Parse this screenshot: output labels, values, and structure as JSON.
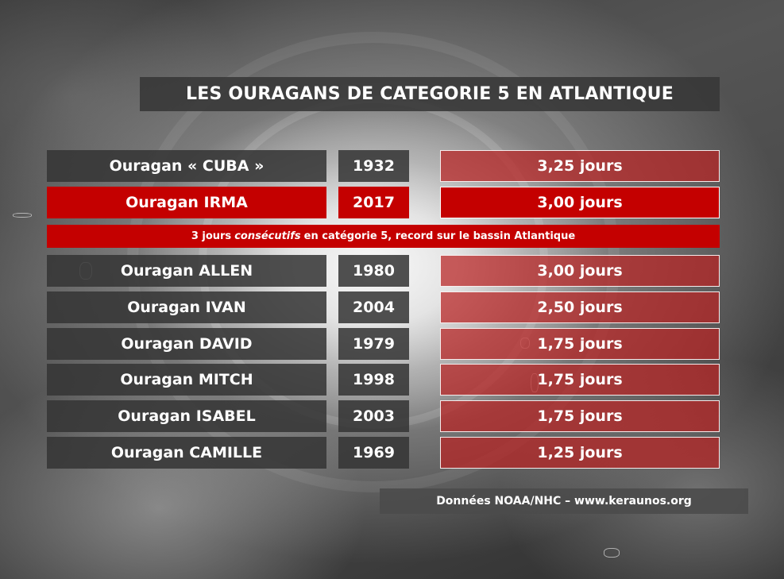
{
  "title": "LES OURAGANS DE CATEGORIE 5 EN ATLANTIQUE",
  "rows": [
    {
      "name": "Ouragan « CUBA »",
      "year": "1932",
      "duration": "3,25 jours"
    },
    {
      "name": "Ouragan IRMA",
      "year": "2017",
      "duration": "3,00 jours",
      "highlight": true
    },
    {
      "name": "Ouragan ALLEN",
      "year": "1980",
      "duration": "3,00 jours"
    },
    {
      "name": "Ouragan IVAN",
      "year": "2004",
      "duration": "2,50 jours"
    },
    {
      "name": "Ouragan DAVID",
      "year": "1979",
      "duration": "1,75 jours"
    },
    {
      "name": "Ouragan MITCH",
      "year": "1998",
      "duration": "1,75 jours"
    },
    {
      "name": "Ouragan ISABEL",
      "year": "2003",
      "duration": "1,75 jours"
    },
    {
      "name": "Ouragan CAMILLE",
      "year": "1969",
      "duration": "1,25 jours"
    }
  ],
  "banner": {
    "prefix": "3 jours",
    "emphasis": "consécutifs",
    "suffix": "en catégorie 5, record sur le bassin Atlantique"
  },
  "source": "Données NOAA/NHC – www.keraunos.org",
  "colors": {
    "highlight_red": "#c40000",
    "dark_cell": "#343434",
    "duration_red": "#b92323"
  }
}
